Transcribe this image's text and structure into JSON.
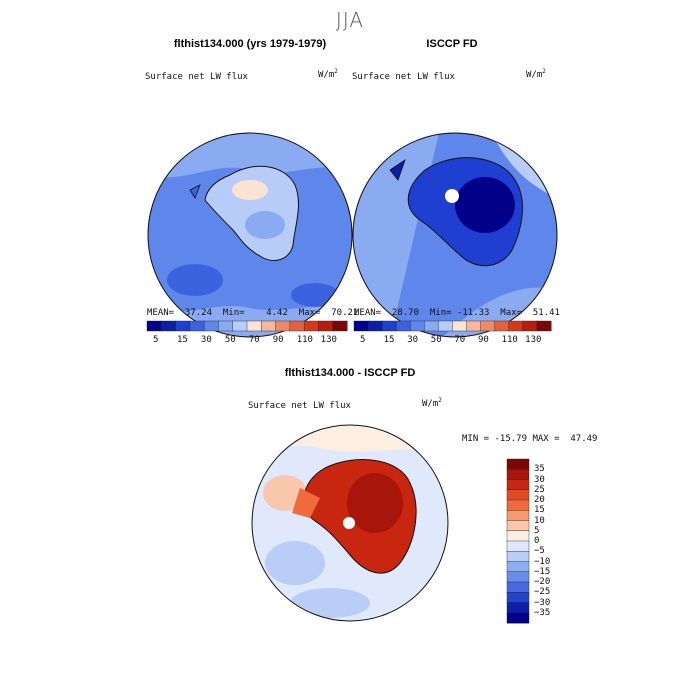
{
  "season": "JJA",
  "panels": [
    {
      "title": "flthist134.000 (yrs 1979-1979)",
      "variable": "Surface net LW flux",
      "units_base": "W/m",
      "units_exp": "2",
      "stats": "MEAN=  37.24  Min=    4.42  Max=  70.21",
      "colorbar_ticks": [
        "5",
        "15",
        "30",
        "50",
        "70",
        "90",
        "110",
        "130"
      ]
    },
    {
      "title": "ISCCP FD",
      "variable": "Surface net LW flux",
      "units_base": "W/m",
      "units_exp": "2",
      "stats": "MEAN=  28.70  Min= -11.33  Max=  51.41",
      "colorbar_ticks": [
        "5",
        "15",
        "30",
        "50",
        "70",
        "90",
        "110",
        "130"
      ]
    }
  ],
  "diff": {
    "title": "flthist134.000 - ISCCP FD",
    "variable": "Surface net LW flux",
    "units_base": "W/m",
    "units_exp": "2",
    "minmax": "MIN = -15.79 MAX =  47.49",
    "colorbar_ticks": [
      "35",
      "30",
      "25",
      "20",
      "15",
      "10",
      "5",
      "0",
      "−5",
      "−10",
      "−15",
      "−20",
      "−25",
      "−30",
      "−35"
    ]
  },
  "colors": {
    "abs_scale": [
      "#00008b",
      "#0a1ea8",
      "#1f3fd0",
      "#3d62e0",
      "#5f86ea",
      "#8aaaf2",
      "#b7cdf7",
      "#fbe3d4",
      "#f6b79a",
      "#ef8a66",
      "#e5603e",
      "#d23a1f",
      "#b41f0f",
      "#7d0707"
    ],
    "diff_scale": [
      "#7d0707",
      "#a8150a",
      "#c8260e",
      "#e24a22",
      "#f06a3c",
      "#f49a72",
      "#f8c7ac",
      "#fdeee2",
      "#dfe9fb",
      "#b9cdf7",
      "#8eaef2",
      "#6a8de9",
      "#4669e0",
      "#2343c8",
      "#0a1ea8",
      "#00008b"
    ]
  },
  "chart_data": [
    {
      "type": "heatmap",
      "title": "flthist134.000 (yrs 1979-1979)",
      "variable": "Surface net LW flux",
      "units": "W/m2",
      "projection": "south polar stereographic",
      "mean": 37.24,
      "min": 4.42,
      "max": 70.21,
      "levels": [
        5,
        10,
        15,
        20,
        30,
        40,
        50,
        60,
        70,
        80,
        90,
        100,
        110,
        120,
        130
      ]
    },
    {
      "type": "heatmap",
      "title": "ISCCP FD",
      "variable": "Surface net LW flux",
      "units": "W/m2",
      "projection": "south polar stereographic",
      "mean": 28.7,
      "min": -11.33,
      "max": 51.41,
      "levels": [
        5,
        10,
        15,
        20,
        30,
        40,
        50,
        60,
        70,
        80,
        90,
        100,
        110,
        120,
        130
      ]
    },
    {
      "type": "heatmap",
      "title": "flthist134.000 - ISCCP FD",
      "variable": "Surface net LW flux",
      "units": "W/m2",
      "projection": "south polar stereographic",
      "min": -15.79,
      "max": 47.49,
      "levels": [
        -35,
        -30,
        -25,
        -20,
        -15,
        -10,
        -5,
        0,
        5,
        10,
        15,
        20,
        25,
        30,
        35
      ]
    }
  ]
}
